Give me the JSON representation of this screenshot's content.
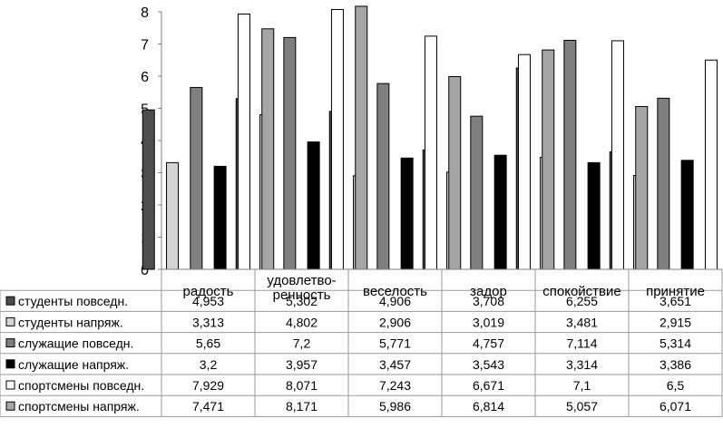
{
  "chart_data": {
    "type": "bar",
    "categories": [
      [
        "радость"
      ],
      [
        "удовлетво-",
        "ренность"
      ],
      [
        "веселость"
      ],
      [
        "задор"
      ],
      [
        "спокойствие"
      ],
      [
        "принятие"
      ]
    ],
    "ylim": [
      0,
      8
    ],
    "yticks": [
      "0",
      "1",
      "2",
      "3",
      "4",
      "5",
      "6",
      "7",
      "8"
    ],
    "grid": false,
    "legend_placement": "data-table",
    "series": [
      {
        "name": "студенты повседн.",
        "color": "#4d4d4d",
        "values": [
          4.953,
          5.302,
          4.906,
          3.708,
          6.255,
          3.651
        ],
        "labels": [
          "4,953",
          "5,302",
          "4,906",
          "3,708",
          "6,255",
          "3,651"
        ]
      },
      {
        "name": "студенты напряж.",
        "color": "#d4d4d4",
        "values": [
          3.313,
          4.802,
          2.906,
          3.019,
          3.481,
          2.915
        ],
        "labels": [
          "3,313",
          "4,802",
          "2,906",
          "3,019",
          "3,481",
          "2,915"
        ]
      },
      {
        "name": "служащие повседн.",
        "color": "#7f7f7f",
        "values": [
          5.65,
          7.2,
          5.771,
          4.757,
          7.114,
          5.314
        ],
        "labels": [
          "5,65",
          "7,2",
          "5,771",
          "4,757",
          "7,114",
          "5,314"
        ]
      },
      {
        "name": "служащие напряж.",
        "color": "#000000",
        "values": [
          3.2,
          3.957,
          3.457,
          3.543,
          3.314,
          3.386
        ],
        "labels": [
          "3,2",
          "3,957",
          "3,457",
          "3,543",
          "3,314",
          "3,386"
        ]
      },
      {
        "name": "спортсмены повседн.",
        "color": "#ffffff",
        "values": [
          7.929,
          8.071,
          7.243,
          6.671,
          7.1,
          6.5
        ],
        "labels": [
          "7,929",
          "8,071",
          "7,243",
          "6,671",
          "7,1",
          "6,5"
        ]
      },
      {
        "name": "спортсмены напряж.",
        "color": "#a6a6a6",
        "values": [
          7.471,
          8.171,
          5.986,
          6.814,
          5.057,
          6.071
        ],
        "labels": [
          "7,471",
          "8,171",
          "5,986",
          "6,814",
          "5,057",
          "6,071"
        ]
      }
    ]
  }
}
